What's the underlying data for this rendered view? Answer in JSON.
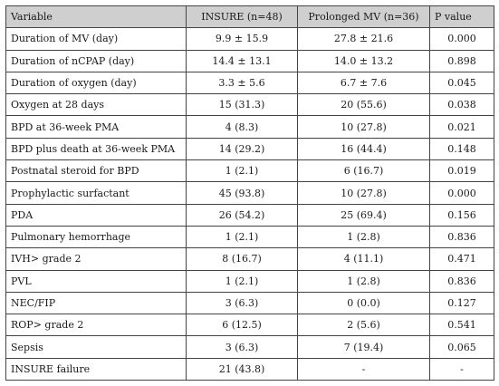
{
  "headers": {
    "variable": "Variable",
    "insure": "INSURE (n=48)",
    "prolonged": "Prolonged MV (n=36)",
    "pvalue": "P value"
  },
  "rows": [
    {
      "variable": "Duration of MV (day)",
      "insure": "9.9 ± 15.9",
      "prolonged": "27.8 ± 21.6",
      "p": "0.000"
    },
    {
      "variable": "Duration of nCPAP (day)",
      "insure": "14.4 ± 13.1",
      "prolonged": "14.0 ± 13.2",
      "p": "0.898"
    },
    {
      "variable": "Duration of oxygen (day)",
      "insure": "3.3 ± 5.6",
      "prolonged": "6.7 ± 7.6",
      "p": "0.045"
    },
    {
      "variable": "Oxygen at 28 days",
      "insure": "15 (31.3)",
      "prolonged": "20 (55.6)",
      "p": "0.038"
    },
    {
      "variable": "BPD at 36-week PMA",
      "insure": "4 (8.3)",
      "prolonged": "10 (27.8)",
      "p": "0.021"
    },
    {
      "variable": "BPD plus death at 36-week PMA",
      "insure": "14 (29.2)",
      "prolonged": "16 (44.4)",
      "p": "0.148"
    },
    {
      "variable": "Postnatal steroid for BPD",
      "insure": "1 (2.1)",
      "prolonged": "6 (16.7)",
      "p": "0.019"
    },
    {
      "variable": "Prophylactic surfactant",
      "insure": "45 (93.8)",
      "prolonged": "10 (27.8)",
      "p": "0.000"
    },
    {
      "variable": "PDA",
      "insure": "26 (54.2)",
      "prolonged": "25 (69.4)",
      "p": "0.156"
    },
    {
      "variable": "Pulmonary hemorrhage",
      "insure": "1 (2.1)",
      "prolonged": "1 (2.8)",
      "p": "0.836"
    },
    {
      "variable": "IVH> grade 2",
      "insure": "8 (16.7)",
      "prolonged": "4 (11.1)",
      "p": "0.471"
    },
    {
      "variable": "PVL",
      "insure": "1 (2.1)",
      "prolonged": "1 (2.8)",
      "p": "0.836"
    },
    {
      "variable": "NEC/FIP",
      "insure": "3 (6.3)",
      "prolonged": "0 (0.0)",
      "p": "0.127"
    },
    {
      "variable": "ROP> grade 2",
      "insure": "6 (12.5)",
      "prolonged": "2 (5.6)",
      "p": "0.541"
    },
    {
      "variable": "Sepsis",
      "insure": "3 (6.3)",
      "prolonged": "7 (19.4)",
      "p": "0.065"
    },
    {
      "variable": "INSURE failure",
      "insure": "21 (43.8)",
      "prolonged": "-",
      "p": "-"
    }
  ]
}
